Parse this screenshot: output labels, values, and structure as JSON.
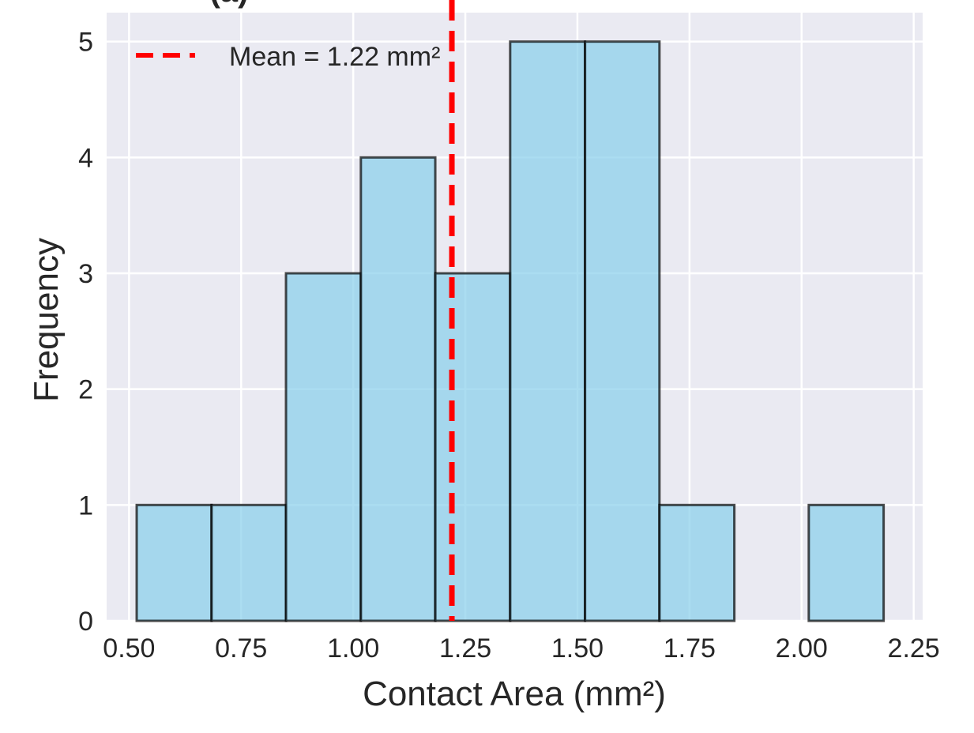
{
  "chart_data": {
    "type": "bar",
    "subtype": "histogram",
    "title": "(a)",
    "xlabel": "Contact Area (mm²)",
    "ylabel": "Frequency",
    "xlim": [
      0.45,
      2.27
    ],
    "ylim": [
      0,
      5.25
    ],
    "xticks": [
      0.5,
      0.75,
      1.0,
      1.25,
      1.5,
      1.75,
      2.0,
      2.25
    ],
    "xtick_labels": [
      "0.50",
      "0.75",
      "1.00",
      "1.25",
      "1.50",
      "1.75",
      "2.00",
      "2.25"
    ],
    "yticks": [
      0,
      1,
      2,
      3,
      4,
      5
    ],
    "ytick_labels": [
      "0",
      "1",
      "2",
      "3",
      "4",
      "5"
    ],
    "bins": [
      {
        "x0": 0.517,
        "x1": 0.684,
        "count": 1
      },
      {
        "x0": 0.684,
        "x1": 0.85,
        "count": 1
      },
      {
        "x0": 0.85,
        "x1": 1.017,
        "count": 3
      },
      {
        "x0": 1.017,
        "x1": 1.183,
        "count": 4
      },
      {
        "x0": 1.183,
        "x1": 1.35,
        "count": 3
      },
      {
        "x0": 1.35,
        "x1": 1.517,
        "count": 5
      },
      {
        "x0": 1.517,
        "x1": 1.683,
        "count": 5
      },
      {
        "x0": 1.683,
        "x1": 1.85,
        "count": 1
      },
      {
        "x0": 1.85,
        "x1": 2.016,
        "count": 0
      },
      {
        "x0": 2.016,
        "x1": 2.183,
        "count": 1
      }
    ],
    "mean_line": {
      "value": 1.22,
      "label": "Mean = 1.22 mm²",
      "color": "#ff0000",
      "style": "dashed"
    },
    "bar_color": "#87ceeb",
    "bar_edge_color": "#000000",
    "background_color": "#eaeaf2",
    "grid": true,
    "legend": {
      "position": "top-left",
      "entries": [
        "Mean = 1.22 mm²"
      ]
    }
  }
}
